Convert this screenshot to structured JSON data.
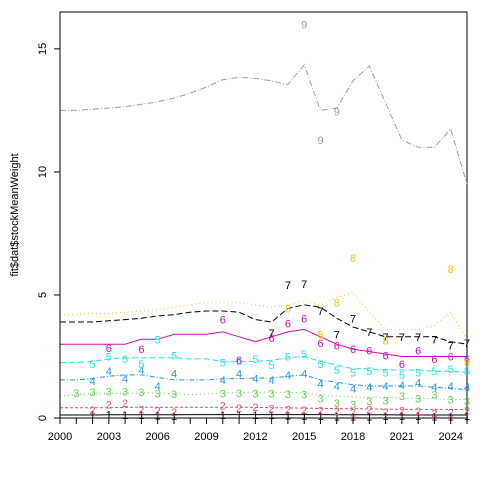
{
  "chart_data": {
    "type": "line",
    "ylabel": "fit$dat$stockMeanWeight",
    "xlabel": "",
    "xlim": [
      2000,
      2025
    ],
    "ylim": [
      0,
      16.5
    ],
    "x_ticks": [
      "2000",
      "2003",
      "2006",
      "2009",
      "2012",
      "2015",
      "2018",
      "2021",
      "2024"
    ],
    "y_ticks": [
      "0",
      "5",
      "10",
      "15"
    ],
    "grid": false,
    "x": [
      2000,
      2001,
      2002,
      2003,
      2004,
      2005,
      2006,
      2007,
      2008,
      2009,
      2010,
      2011,
      2012,
      2013,
      2014,
      2015,
      2016,
      2017,
      2018,
      2019,
      2020,
      2021,
      2022,
      2023,
      2024,
      2025
    ],
    "series": [
      {
        "name": "1",
        "color": "#000000",
        "dash": "",
        "values": [
          0.12,
          0.12,
          0.12,
          0.13,
          0.13,
          0.13,
          0.13,
          0.13,
          0.14,
          0.14,
          0.14,
          0.14,
          0.14,
          0.14,
          0.14,
          0.14,
          0.14,
          0.13,
          0.13,
          0.13,
          0.13,
          0.12,
          0.12,
          0.12,
          0.12,
          0.12
        ],
        "points": [
          [
            2002,
            0.14
          ],
          [
            2003,
            0.15
          ],
          [
            2004,
            0.13
          ],
          [
            2005,
            0.12
          ],
          [
            2006,
            0.1
          ],
          [
            2007,
            0.09
          ],
          [
            2010,
            0.13
          ],
          [
            2011,
            0.14
          ],
          [
            2012,
            0.12
          ],
          [
            2013,
            0.12
          ],
          [
            2014,
            0.1
          ],
          [
            2015,
            0.09
          ],
          [
            2016,
            0.08
          ],
          [
            2017,
            0.07
          ],
          [
            2018,
            0.06
          ],
          [
            2019,
            0.07
          ],
          [
            2020,
            0.08
          ],
          [
            2021,
            0.09
          ],
          [
            2022,
            0.08
          ],
          [
            2023,
            0.07
          ],
          [
            2024,
            0.07
          ],
          [
            2025,
            0.08
          ]
        ]
      },
      {
        "name": "2",
        "color": "#df536b",
        "dash": "3,2",
        "values": [
          0.42,
          0.42,
          0.42,
          0.42,
          0.43,
          0.44,
          0.44,
          0.44,
          0.44,
          0.44,
          0.44,
          0.44,
          0.43,
          0.42,
          0.41,
          0.4,
          0.39,
          0.38,
          0.38,
          0.37,
          0.36,
          0.35,
          0.35,
          0.35,
          0.35,
          0.34
        ],
        "points": [
          [
            2002,
            0.32
          ],
          [
            2003,
            0.55
          ],
          [
            2004,
            0.6
          ],
          [
            2005,
            0.35
          ],
          [
            2006,
            0.3
          ],
          [
            2007,
            0.25
          ],
          [
            2010,
            0.5
          ],
          [
            2011,
            0.4
          ],
          [
            2012,
            0.45
          ],
          [
            2013,
            0.38
          ],
          [
            2014,
            0.35
          ],
          [
            2015,
            0.32
          ],
          [
            2016,
            0.3
          ],
          [
            2017,
            0.28
          ],
          [
            2018,
            0.22
          ],
          [
            2019,
            0.35
          ],
          [
            2020,
            0.25
          ],
          [
            2021,
            0.3
          ],
          [
            2022,
            0.28
          ],
          [
            2023,
            0.2
          ],
          [
            2024,
            0.22
          ],
          [
            2025,
            0.3
          ]
        ]
      },
      {
        "name": "3",
        "color": "#61d04f",
        "dash": "1,3",
        "values": [
          0.9,
          0.95,
          0.98,
          1.0,
          1.0,
          1.02,
          1.02,
          0.98,
          0.95,
          0.98,
          1.02,
          1.04,
          1.05,
          1.05,
          1.05,
          1.0,
          0.95,
          0.9,
          0.85,
          0.85,
          0.85,
          0.8,
          0.8,
          0.78,
          0.75,
          0.75
        ],
        "points": [
          [
            2001,
            1.02
          ],
          [
            2002,
            1.05
          ],
          [
            2003,
            1.08
          ],
          [
            2004,
            1.08
          ],
          [
            2005,
            1.05
          ],
          [
            2006,
            1.0
          ],
          [
            2007,
            0.98
          ],
          [
            2010,
            1.0
          ],
          [
            2011,
            1.02
          ],
          [
            2012,
            1.0
          ],
          [
            2013,
            1.0
          ],
          [
            2014,
            0.98
          ],
          [
            2015,
            0.95
          ],
          [
            2016,
            0.8
          ],
          [
            2017,
            0.6
          ],
          [
            2018,
            0.55
          ],
          [
            2019,
            0.7
          ],
          [
            2020,
            0.72
          ],
          [
            2021,
            0.9
          ],
          [
            2022,
            0.8
          ],
          [
            2023,
            0.95
          ],
          [
            2024,
            0.75
          ],
          [
            2025,
            0.7
          ]
        ]
      },
      {
        "name": "4",
        "color": "#2297e6",
        "dash": "5,2,1,2",
        "values": [
          1.55,
          1.55,
          1.6,
          1.7,
          1.75,
          1.75,
          1.65,
          1.55,
          1.55,
          1.55,
          1.6,
          1.6,
          1.62,
          1.62,
          1.7,
          1.75,
          1.55,
          1.45,
          1.35,
          1.3,
          1.3,
          1.3,
          1.3,
          1.25,
          1.2,
          1.15
        ],
        "points": [
          [
            2002,
            1.5
          ],
          [
            2003,
            1.9
          ],
          [
            2004,
            1.6
          ],
          [
            2005,
            1.95
          ],
          [
            2006,
            1.3
          ],
          [
            2007,
            1.8
          ],
          [
            2010,
            1.55
          ],
          [
            2011,
            1.8
          ],
          [
            2012,
            1.6
          ],
          [
            2013,
            1.55
          ],
          [
            2014,
            1.75
          ],
          [
            2015,
            1.8
          ],
          [
            2016,
            1.4
          ],
          [
            2017,
            1.3
          ],
          [
            2018,
            1.2
          ],
          [
            2019,
            1.25
          ],
          [
            2020,
            1.3
          ],
          [
            2021,
            1.35
          ],
          [
            2022,
            1.45
          ],
          [
            2023,
            1.25
          ],
          [
            2024,
            1.3
          ],
          [
            2025,
            1.25
          ]
        ]
      },
      {
        "name": "5",
        "color": "#28e2e5",
        "dash": "6,3",
        "values": [
          2.25,
          2.25,
          2.3,
          2.4,
          2.45,
          2.45,
          2.45,
          2.45,
          2.4,
          2.4,
          2.3,
          2.3,
          2.3,
          2.35,
          2.45,
          2.5,
          2.3,
          2.15,
          2.0,
          2.0,
          1.95,
          1.95,
          1.95,
          1.9,
          1.9,
          1.85
        ],
        "points": [
          [
            2002,
            2.2
          ],
          [
            2003,
            2.5
          ],
          [
            2004,
            2.4
          ],
          [
            2005,
            2.2
          ],
          [
            2006,
            3.2
          ],
          [
            2007,
            2.55
          ],
          [
            2010,
            2.25
          ],
          [
            2011,
            2.3
          ],
          [
            2012,
            2.4
          ],
          [
            2013,
            2.15
          ],
          [
            2014,
            2.5
          ],
          [
            2015,
            2.6
          ],
          [
            2016,
            2.2
          ],
          [
            2017,
            1.95
          ],
          [
            2018,
            1.85
          ],
          [
            2019,
            1.9
          ],
          [
            2020,
            1.85
          ],
          [
            2021,
            1.75
          ],
          [
            2022,
            1.85
          ],
          [
            2023,
            1.9
          ],
          [
            2024,
            2.0
          ],
          [
            2025,
            1.9
          ]
        ]
      },
      {
        "name": "6",
        "color": "#cd0bbc",
        "dash": "",
        "values": [
          3.0,
          3.0,
          3.0,
          3.0,
          3.0,
          3.2,
          3.2,
          3.4,
          3.4,
          3.4,
          3.5,
          3.3,
          3.1,
          3.3,
          3.5,
          3.6,
          3.3,
          3.0,
          2.8,
          2.7,
          2.6,
          2.5,
          2.5,
          2.5,
          2.5,
          2.5
        ],
        "points": [
          [
            2003,
            2.85
          ],
          [
            2005,
            2.8
          ],
          [
            2010,
            4.0
          ],
          [
            2011,
            2.35
          ],
          [
            2013,
            3.25
          ],
          [
            2014,
            3.85
          ],
          [
            2015,
            4.05
          ],
          [
            2016,
            3.05
          ],
          [
            2017,
            2.95
          ],
          [
            2018,
            2.8
          ],
          [
            2019,
            2.75
          ],
          [
            2020,
            2.55
          ],
          [
            2021,
            2.2
          ],
          [
            2022,
            2.75
          ],
          [
            2023,
            2.4
          ],
          [
            2024,
            2.5
          ],
          [
            2025,
            2.4
          ]
        ]
      },
      {
        "name": "7",
        "color": "#000000",
        "dash": "6,3",
        "values": [
          3.9,
          3.9,
          3.9,
          3.95,
          4.0,
          4.05,
          4.15,
          4.2,
          4.3,
          4.35,
          4.35,
          4.3,
          4.0,
          3.9,
          4.45,
          4.6,
          4.5,
          4.05,
          3.7,
          3.5,
          3.3,
          3.3,
          3.3,
          3.3,
          3.1,
          3.0
        ],
        "points": [
          [
            2013,
            3.45
          ],
          [
            2014,
            5.4
          ],
          [
            2015,
            5.45
          ],
          [
            2016,
            4.35
          ],
          [
            2017,
            3.4
          ],
          [
            2018,
            4.05
          ],
          [
            2019,
            3.5
          ],
          [
            2020,
            3.3
          ],
          [
            2021,
            3.3
          ],
          [
            2022,
            3.3
          ],
          [
            2023,
            3.2
          ],
          [
            2024,
            2.95
          ],
          [
            2025,
            3.05
          ]
        ]
      },
      {
        "name": "8",
        "color": "#f5c710",
        "dash": "1,3",
        "values": [
          4.2,
          4.2,
          4.25,
          4.25,
          4.3,
          4.35,
          4.4,
          4.5,
          4.6,
          4.7,
          4.7,
          4.7,
          4.6,
          4.5,
          4.6,
          4.75,
          4.6,
          4.9,
          5.1,
          4.3,
          3.6,
          3.6,
          3.6,
          3.75,
          4.3,
          3.2
        ],
        "points": [
          [
            2014,
            4.45
          ],
          [
            2016,
            3.4
          ],
          [
            2017,
            4.7
          ],
          [
            2018,
            6.5
          ],
          [
            2020,
            3.15
          ],
          [
            2024,
            6.05
          ],
          [
            2025,
            2.25
          ]
        ]
      },
      {
        "name": "9",
        "color": "#9e9e9e",
        "dash": "6,2,1,2",
        "values": [
          12.5,
          12.5,
          12.55,
          12.6,
          12.65,
          12.75,
          12.85,
          13.0,
          13.2,
          13.45,
          13.75,
          13.85,
          13.8,
          13.7,
          13.55,
          14.35,
          12.5,
          12.6,
          13.7,
          14.3,
          12.8,
          11.3,
          11.0,
          11.0,
          11.75,
          9.5
        ],
        "points": [
          [
            2015,
            16.0
          ],
          [
            2016,
            11.3
          ],
          [
            2017,
            12.45
          ]
        ]
      }
    ]
  }
}
